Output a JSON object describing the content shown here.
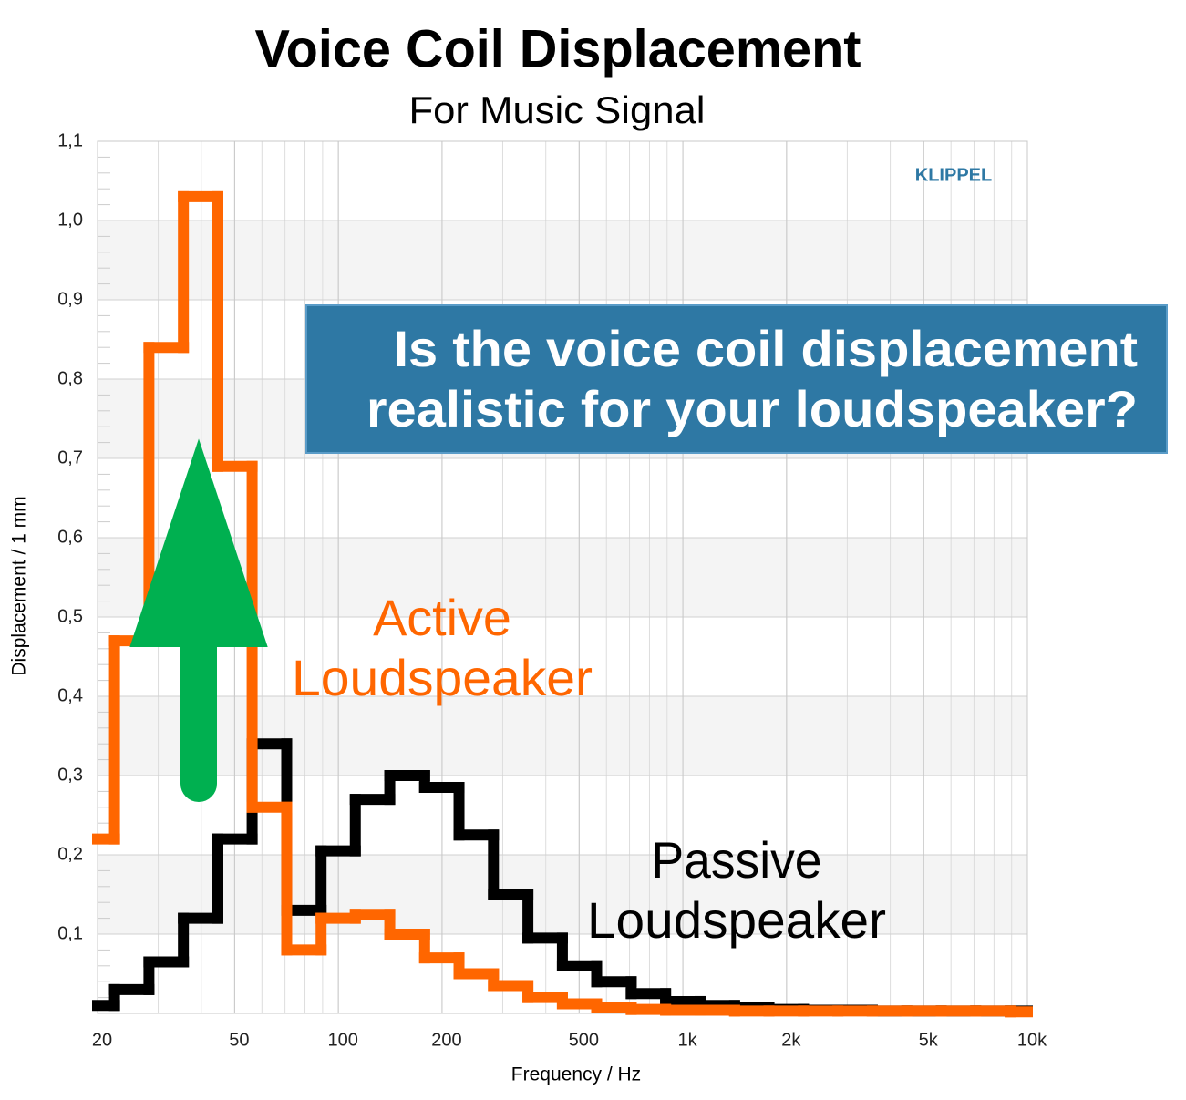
{
  "chart_data": {
    "type": "histogram",
    "title": "Voice Coil Displacement",
    "subtitle": "For Music Signal",
    "xlabel": "Frequency / Hz",
    "ylabel": "Displacement / 1 mm",
    "watermark": "KLIPPEL",
    "callout": [
      "Is the voice coil displacement",
      "realistic for your loudspeaker?"
    ],
    "annotations": [
      {
        "lines": [
          "Active",
          "Loudspeaker"
        ],
        "color": "#ff6600"
      },
      {
        "lines": [
          "Passive",
          "Loudspeaker"
        ],
        "color": "#000000"
      }
    ],
    "xscale": "log",
    "grid": true,
    "xlim": [
      20,
      10000
    ],
    "ylim": [
      0,
      1.1
    ],
    "xticks": [
      20,
      50,
      100,
      200,
      500,
      {
        "value": 1000,
        "label": "1k"
      },
      {
        "value": 2000,
        "label": "2k"
      },
      {
        "value": 5000,
        "label": "5k"
      },
      {
        "value": 10000,
        "label": "10k"
      }
    ],
    "yticks": [
      {
        "value": 0.1,
        "label": "0,1"
      },
      {
        "value": 0.2,
        "label": "0,2"
      },
      {
        "value": 0.3,
        "label": "0,3"
      },
      {
        "value": 0.4,
        "label": "0,4"
      },
      {
        "value": 0.5,
        "label": "0,5"
      },
      {
        "value": 0.6,
        "label": "0,6"
      },
      {
        "value": 0.7,
        "label": "0,7"
      },
      {
        "value": 0.8,
        "label": "0,8"
      },
      {
        "value": 0.9,
        "label": "0,9"
      },
      {
        "value": 1.0,
        "label": "1,0"
      },
      {
        "value": 1.1,
        "label": "1,1"
      }
    ],
    "bins": [
      20,
      22.4,
      28.2,
      35.5,
      44.7,
      56.2,
      70.8,
      89.1,
      112,
      141,
      178,
      224,
      282,
      355,
      447,
      562,
      708,
      891,
      1122,
      1413,
      1778,
      2239,
      2818,
      3548,
      4467,
      5623,
      7079,
      8913,
      10000
    ],
    "series": [
      {
        "color": "#000000",
        "values": [
          0.01,
          0.03,
          0.065,
          0.12,
          0.22,
          0.34,
          0.13,
          0.205,
          0.27,
          0.3,
          0.285,
          0.225,
          0.15,
          0.095,
          0.06,
          0.04,
          0.025,
          0.015,
          0.01,
          0.007,
          0.005,
          0.004,
          0.004,
          0.003,
          0.003,
          0.003,
          0.003,
          0.003
        ]
      },
      {
        "color": "#ff6600",
        "values": [
          0.22,
          0.47,
          0.84,
          1.03,
          0.69,
          0.26,
          0.08,
          0.12,
          0.125,
          0.1,
          0.07,
          0.05,
          0.035,
          0.02,
          0.012,
          0.007,
          0.005,
          0.004,
          0.004,
          0.003,
          0.003,
          0.003,
          0.003,
          0.003,
          0.003,
          0.003,
          0.003,
          0.002
        ]
      }
    ]
  }
}
